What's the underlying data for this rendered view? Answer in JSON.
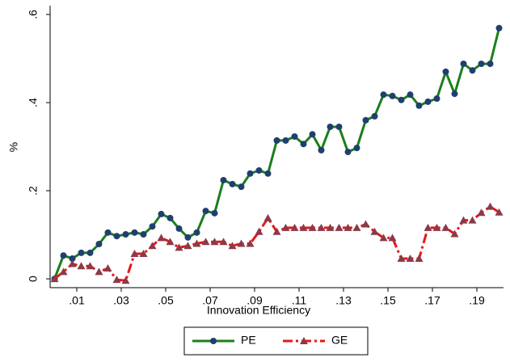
{
  "chart_data": {
    "type": "line",
    "x_label": "Innovation Efficiency",
    "y_label": "%",
    "x": [
      0,
      0.004,
      0.008,
      0.012,
      0.016,
      0.02,
      0.024,
      0.028,
      0.032,
      0.036,
      0.04,
      0.044,
      0.048,
      0.052,
      0.056,
      0.06,
      0.064,
      0.068,
      0.072,
      0.076,
      0.08,
      0.084,
      0.088,
      0.092,
      0.096,
      0.1,
      0.104,
      0.108,
      0.112,
      0.116,
      0.12,
      0.124,
      0.128,
      0.132,
      0.136,
      0.14,
      0.144,
      0.148,
      0.152,
      0.156,
      0.16,
      0.164,
      0.168,
      0.172,
      0.176,
      0.18,
      0.184,
      0.188,
      0.192,
      0.196,
      0.2
    ],
    "series": [
      {
        "name": "PE",
        "color": "#1a7f1a",
        "marker_color": "#1f3f6f",
        "values": [
          0,
          0.053,
          0.046,
          0.059,
          0.059,
          0.079,
          0.105,
          0.097,
          0.101,
          0.105,
          0.101,
          0.119,
          0.147,
          0.138,
          0.114,
          0.094,
          0.105,
          0.154,
          0.149,
          0.224,
          0.215,
          0.209,
          0.239,
          0.246,
          0.239,
          0.314,
          0.314,
          0.323,
          0.306,
          0.328,
          0.292,
          0.345,
          0.345,
          0.288,
          0.297,
          0.36,
          0.369,
          0.418,
          0.415,
          0.406,
          0.418,
          0.393,
          0.402,
          0.409,
          0.47,
          0.42,
          0.488,
          0.473,
          0.488,
          0.488,
          0.569
        ]
      },
      {
        "name": "GE",
        "color": "#e8161a",
        "marker_color": "#8a3a48",
        "values": [
          0,
          0.016,
          0.034,
          0.029,
          0.029,
          0.016,
          0.024,
          -0.002,
          -0.004,
          0.057,
          0.057,
          0.075,
          0.093,
          0.084,
          0.071,
          0.075,
          0.08,
          0.084,
          0.084,
          0.084,
          0.075,
          0.08,
          0.08,
          0.107,
          0.138,
          0.107,
          0.116,
          0.116,
          0.116,
          0.116,
          0.116,
          0.116,
          0.116,
          0.116,
          0.116,
          0.124,
          0.107,
          0.093,
          0.093,
          0.046,
          0.046,
          0.046,
          0.116,
          0.116,
          0.116,
          0.102,
          0.133,
          0.133,
          0.15,
          0.164,
          0.151
        ]
      }
    ],
    "xlim": [
      -0.002,
      0.202
    ],
    "ylim": [
      -0.02,
      0.62
    ],
    "xticks": [
      {
        "value": 0.01,
        "label": ".01"
      },
      {
        "value": 0.03,
        "label": ".03"
      },
      {
        "value": 0.05,
        "label": ".05"
      },
      {
        "value": 0.07,
        "label": ".07"
      },
      {
        "value": 0.09,
        "label": ".09"
      },
      {
        "value": 0.11,
        "label": ".11"
      },
      {
        "value": 0.13,
        "label": ".13"
      },
      {
        "value": 0.15,
        "label": ".15"
      },
      {
        "value": 0.17,
        "label": ".17"
      },
      {
        "value": 0.19,
        "label": ".19"
      }
    ],
    "yticks": [
      0,
      {
        "value": 0.2,
        "label": ".2"
      },
      {
        "value": 0.4,
        "label": ".4"
      },
      {
        "value": 0.6,
        "label": ".6"
      }
    ],
    "grid": false,
    "legend": "bottom"
  }
}
